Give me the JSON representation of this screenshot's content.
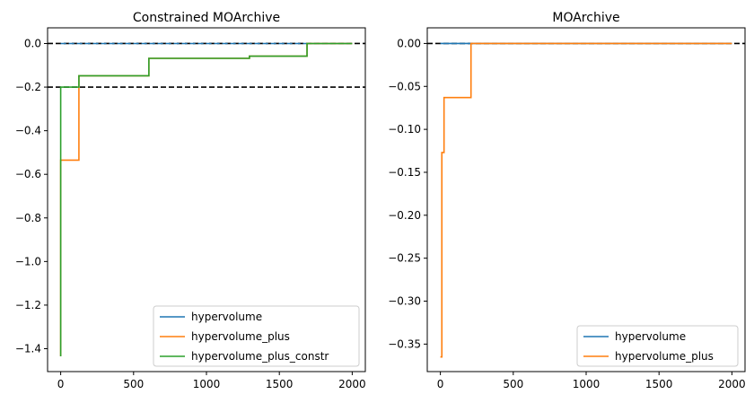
{
  "chart_data": [
    {
      "type": "line",
      "title": "Constrained MOArchive",
      "xlabel": "",
      "ylabel": "",
      "xlim": [
        -90,
        2090
      ],
      "ylim": [
        -1.505,
        0.072
      ],
      "xticks": [
        0,
        500,
        1000,
        1500,
        2000
      ],
      "xtick_labels": [
        "0",
        "500",
        "1000",
        "1500",
        "2000"
      ],
      "yticks": [
        0.0,
        -0.2,
        -0.4,
        -0.6,
        -0.8,
        -1.0,
        -1.2,
        -1.4
      ],
      "ytick_labels": [
        "0.0",
        "−0.2",
        "−0.4",
        "−0.6",
        "−0.8",
        "−1.0",
        "−1.2",
        "−1.4"
      ],
      "reference_lines": [
        {
          "y": 0.0,
          "color": "#000000",
          "dash": true
        },
        {
          "y": -0.2,
          "color": "#000000",
          "dash": true
        }
      ],
      "legend_position": "lower-right",
      "series": [
        {
          "name": "hypervolume",
          "color": "#1f77b4",
          "dash": true,
          "points": [
            [
              0,
              0.0
            ],
            [
              2000,
              0.0
            ]
          ]
        },
        {
          "name": "hypervolume_plus",
          "color": "#ff7f0e",
          "dash": false,
          "points": [
            [
              0,
              -1.435
            ],
            [
              0,
              -0.535
            ],
            [
              125,
              -0.535
            ],
            [
              125,
              -0.148
            ],
            [
              605,
              -0.148
            ],
            [
              605,
              -0.068
            ],
            [
              1295,
              -0.068
            ],
            [
              1295,
              -0.058
            ],
            [
              1690,
              -0.058
            ],
            [
              1690,
              0.0
            ],
            [
              2000,
              0.0
            ]
          ]
        },
        {
          "name": "hypervolume_plus_constr",
          "color": "#2ca02c",
          "dash": false,
          "points": [
            [
              0,
              -1.435
            ],
            [
              0,
              -0.2
            ],
            [
              125,
              -0.2
            ],
            [
              125,
              -0.148
            ],
            [
              605,
              -0.148
            ],
            [
              605,
              -0.068
            ],
            [
              1295,
              -0.068
            ],
            [
              1295,
              -0.058
            ],
            [
              1690,
              -0.058
            ],
            [
              1690,
              0.0
            ],
            [
              2000,
              0.0
            ]
          ]
        }
      ]
    },
    {
      "type": "line",
      "title": "MOArchive",
      "xlabel": "",
      "ylabel": "",
      "xlim": [
        -90,
        2090
      ],
      "ylim": [
        -0.382,
        0.0182
      ],
      "xticks": [
        0,
        500,
        1000,
        1500,
        2000
      ],
      "xtick_labels": [
        "0",
        "500",
        "1000",
        "1500",
        "2000"
      ],
      "yticks": [
        0.0,
        -0.05,
        -0.1,
        -0.15,
        -0.2,
        -0.25,
        -0.3,
        -0.35
      ],
      "ytick_labels": [
        "0.00",
        "−0.05",
        "−0.10",
        "−0.15",
        "−0.20",
        "−0.25",
        "−0.30",
        "−0.35"
      ],
      "reference_lines": [
        {
          "y": 0.0,
          "color": "#000000",
          "dash": true
        }
      ],
      "legend_position": "lower-right",
      "series": [
        {
          "name": "hypervolume",
          "color": "#1f77b4",
          "dash": false,
          "points": [
            [
              0,
              0.0
            ],
            [
              2000,
              0.0
            ]
          ]
        },
        {
          "name": "hypervolume_plus",
          "color": "#ff7f0e",
          "dash": false,
          "points": [
            [
              0,
              -0.365
            ],
            [
              10,
              -0.365
            ],
            [
              10,
              -0.127
            ],
            [
              25,
              -0.127
            ],
            [
              25,
              -0.063
            ],
            [
              210,
              -0.063
            ],
            [
              210,
              0.0
            ],
            [
              2000,
              0.0
            ]
          ]
        }
      ]
    }
  ]
}
